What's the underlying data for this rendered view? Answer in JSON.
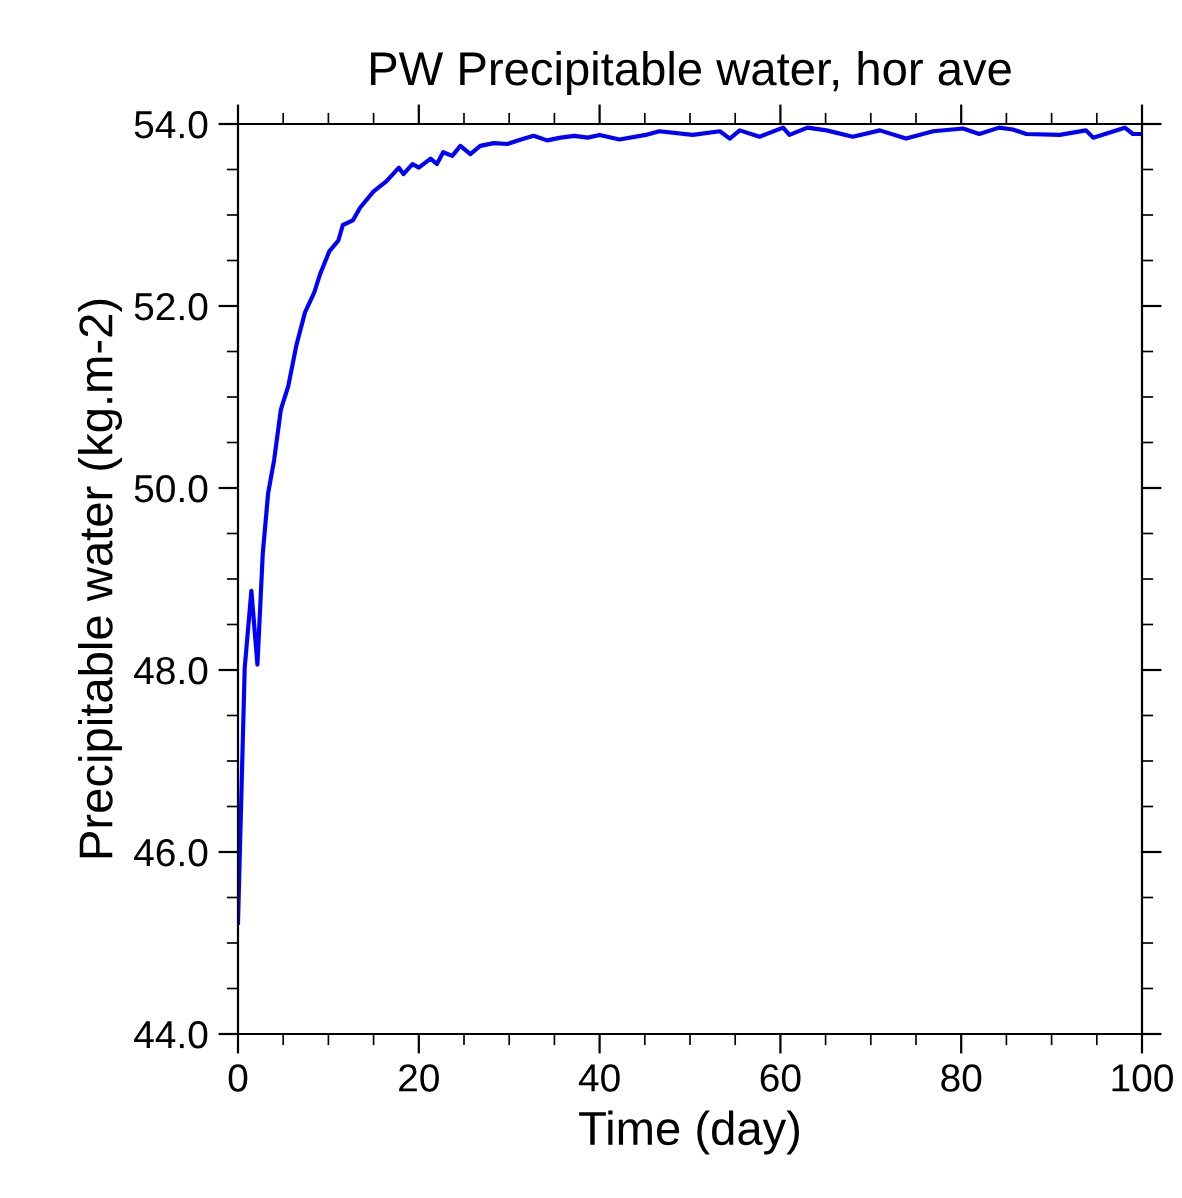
{
  "chart_data": {
    "type": "line",
    "title": "PW Precipitable water, hor ave",
    "xlabel": "Time (day)",
    "ylabel": "Precipitable water (kg.m-2)",
    "x": [
      0,
      0.74,
      1.48,
      2.15,
      2.74,
      3.33,
      4.0,
      4.74,
      5.56,
      6.44,
      7.41,
      8.44,
      9.04,
      10.1,
      11.1,
      11.6,
      12.7,
      13.5,
      15.0,
      16.4,
      17.8,
      18.3,
      19.3,
      20.0,
      21.3,
      22.0,
      22.7,
      23.7,
      24.6,
      25.7,
      26.8,
      28.3,
      29.8,
      31.3,
      32.7,
      34.2,
      35.7,
      37.2,
      38.7,
      40.0,
      42.2,
      45.1,
      46.6,
      50.3,
      53.3,
      54.4,
      55.5,
      57.7,
      60.3,
      61.0,
      63.0,
      65.1,
      68.0,
      71.0,
      73.9,
      76.9,
      80.2,
      82.0,
      84.2,
      85.7,
      87.2,
      90.9,
      93.8,
      94.6,
      98.1,
      99.0,
      100
    ],
    "series": [
      {
        "color": "#0000ff",
        "values": [
          45.22,
          48.02,
          48.87,
          48.06,
          49.28,
          49.94,
          50.31,
          50.86,
          51.12,
          51.56,
          51.93,
          52.15,
          52.34,
          52.6,
          52.72,
          52.89,
          52.94,
          53.08,
          53.26,
          53.37,
          53.52,
          53.45,
          53.56,
          53.52,
          53.62,
          53.56,
          53.69,
          53.65,
          53.76,
          53.67,
          53.76,
          53.79,
          53.78,
          53.83,
          53.87,
          53.82,
          53.85,
          53.87,
          53.85,
          53.88,
          53.83,
          53.88,
          53.92,
          53.88,
          53.92,
          53.84,
          53.93,
          53.86,
          53.96,
          53.88,
          53.96,
          53.93,
          53.86,
          53.93,
          53.84,
          53.92,
          53.95,
          53.89,
          53.96,
          53.94,
          53.89,
          53.88,
          53.93,
          53.85,
          53.96,
          53.89,
          53.89
        ]
      }
    ],
    "xlim": [
      0,
      100
    ],
    "xticks": [
      0,
      20,
      40,
      60,
      80,
      100
    ],
    "ylim": [
      44,
      54
    ],
    "yticks": [
      {
        "value": 44,
        "label": "44.0"
      },
      {
        "value": 46,
        "label": "46.0"
      },
      {
        "value": 48,
        "label": "48.0"
      },
      {
        "value": 50,
        "label": "50.0"
      },
      {
        "value": 52,
        "label": "52.0"
      },
      {
        "value": 54,
        "label": "54.0"
      }
    ],
    "grid": false,
    "legend": false
  }
}
